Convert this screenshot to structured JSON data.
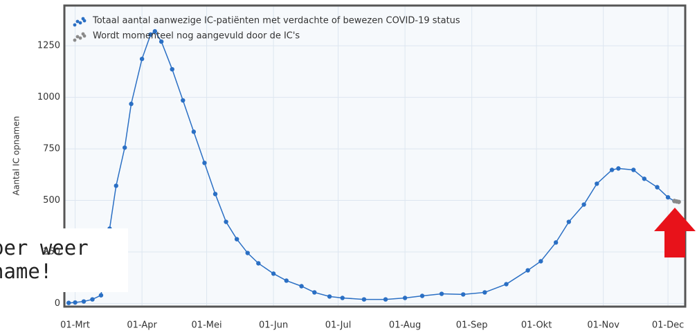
{
  "chart_data": {
    "type": "line",
    "y_label": "Aantal IC opnamen",
    "annotations": [
      "per weer",
      "name!"
    ],
    "xlim": [
      "25-Feb",
      "09-Dec"
    ],
    "xticks": [
      "01-Mrt",
      "01-Apr",
      "01-Mei",
      "01-Jun",
      "01-Jul",
      "01-Aug",
      "01-Sep",
      "01-Okt",
      "01-Nov",
      "01-Dec"
    ],
    "ylim": [
      -15,
      1445
    ],
    "yticks": [
      0,
      250,
      500,
      750,
      1000,
      1250
    ],
    "grid": true,
    "legend": "top-left",
    "series": [
      {
        "name": "Totaal aantal aanwezige IC-patiënten met verdachte of bewezen COVID-19 status",
        "color": "#2a6fc4",
        "x": [
          "27-Feb",
          "01-Mrt",
          "05-Mrt",
          "09-Mrt",
          "13-Mrt",
          "17-Mrt",
          "20-Mrt",
          "24-Mrt",
          "27-Mrt",
          "01-Apr",
          "05-Apr",
          "07-Apr",
          "10-Apr",
          "15-Apr",
          "20-Apr",
          "25-Apr",
          "30-Apr",
          "05-Mei",
          "10-Mei",
          "15-Mei",
          "20-Mei",
          "25-Mei",
          "01-Jun",
          "07-Jun",
          "14-Jun",
          "20-Jun",
          "27-Jun",
          "03-Jul",
          "13-Jul",
          "23-Jul",
          "01-Aug",
          "09-Aug",
          "18-Aug",
          "28-Aug",
          "07-Sep",
          "17-Sep",
          "27-Sep",
          "03-Okt",
          "10-Okt",
          "16-Okt",
          "23-Okt",
          "29-Okt",
          "05-Nov",
          "08-Nov",
          "15-Nov",
          "20-Nov",
          "26-Nov",
          "01-Dec",
          "04-Dec"
        ],
        "values": [
          3,
          5,
          10,
          20,
          40,
          363,
          571,
          756,
          968,
          1186,
          1304,
          1320,
          1270,
          1136,
          985,
          833,
          682,
          531,
          396,
          312,
          245,
          195,
          145,
          111,
          84,
          54,
          34,
          27,
          20,
          20,
          27,
          37,
          47,
          44,
          54,
          94,
          161,
          205,
          296,
          396,
          480,
          581,
          648,
          655,
          648,
          605,
          564,
          515,
          497
        ]
      },
      {
        "name": "Wordt momenteel nog aangevuld door de IC's",
        "color": "#8a8a8a",
        "x": [
          "04-Dec",
          "05-Dec",
          "06-Dec"
        ],
        "values": [
          497,
          495,
          493
        ]
      }
    ]
  }
}
